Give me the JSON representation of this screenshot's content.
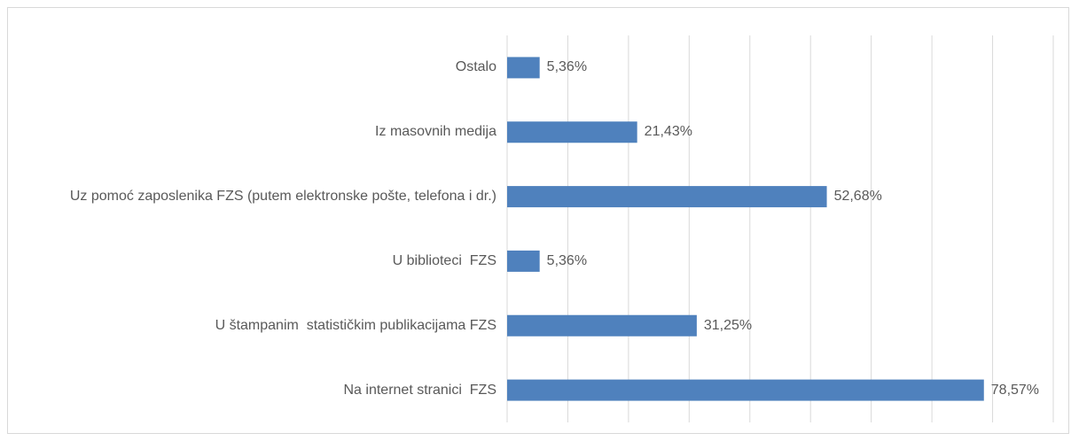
{
  "chart_data": {
    "type": "bar",
    "orientation": "horizontal",
    "categories": [
      "Ostalo",
      "Iz masovnih medija",
      "Uz pomoć zaposlenika FZS (putem elektronske pošte, telefona i dr.)",
      "U biblioteci  FZS",
      "U štampanim  statističkim publikacijama FZS",
      "Na internet stranici  FZS"
    ],
    "values": [
      5.36,
      21.43,
      52.68,
      5.36,
      31.25,
      78.57
    ],
    "value_labels": [
      "5,36%",
      "21,43%",
      "52,68%",
      "5,36%",
      "31,25%",
      "78,57%"
    ],
    "color": "#4f81bd",
    "xlim": [
      0,
      90
    ],
    "xticks": [
      0,
      10,
      20,
      30,
      40,
      50,
      60,
      70,
      80,
      90
    ],
    "grid": true
  }
}
